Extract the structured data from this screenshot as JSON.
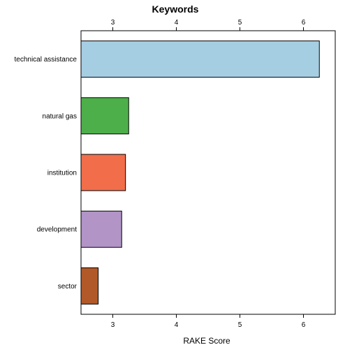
{
  "chart_data": {
    "type": "bar",
    "orientation": "horizontal",
    "title": "Keywords",
    "xlabel": "RAKE Score",
    "ylabel": "",
    "categories": [
      "technical assistance",
      "natural gas",
      "institution",
      "development",
      "sector"
    ],
    "values": [
      6.25,
      3.25,
      3.2,
      3.14,
      2.77
    ],
    "colors": [
      "#a6cee3",
      "#4daf4a",
      "#f26e4b",
      "#b294c7",
      "#b15928"
    ],
    "xticks": [
      "3",
      "4",
      "5",
      "6"
    ],
    "xlim": [
      2.5,
      6.5
    ],
    "grid": false,
    "legend": "none"
  }
}
